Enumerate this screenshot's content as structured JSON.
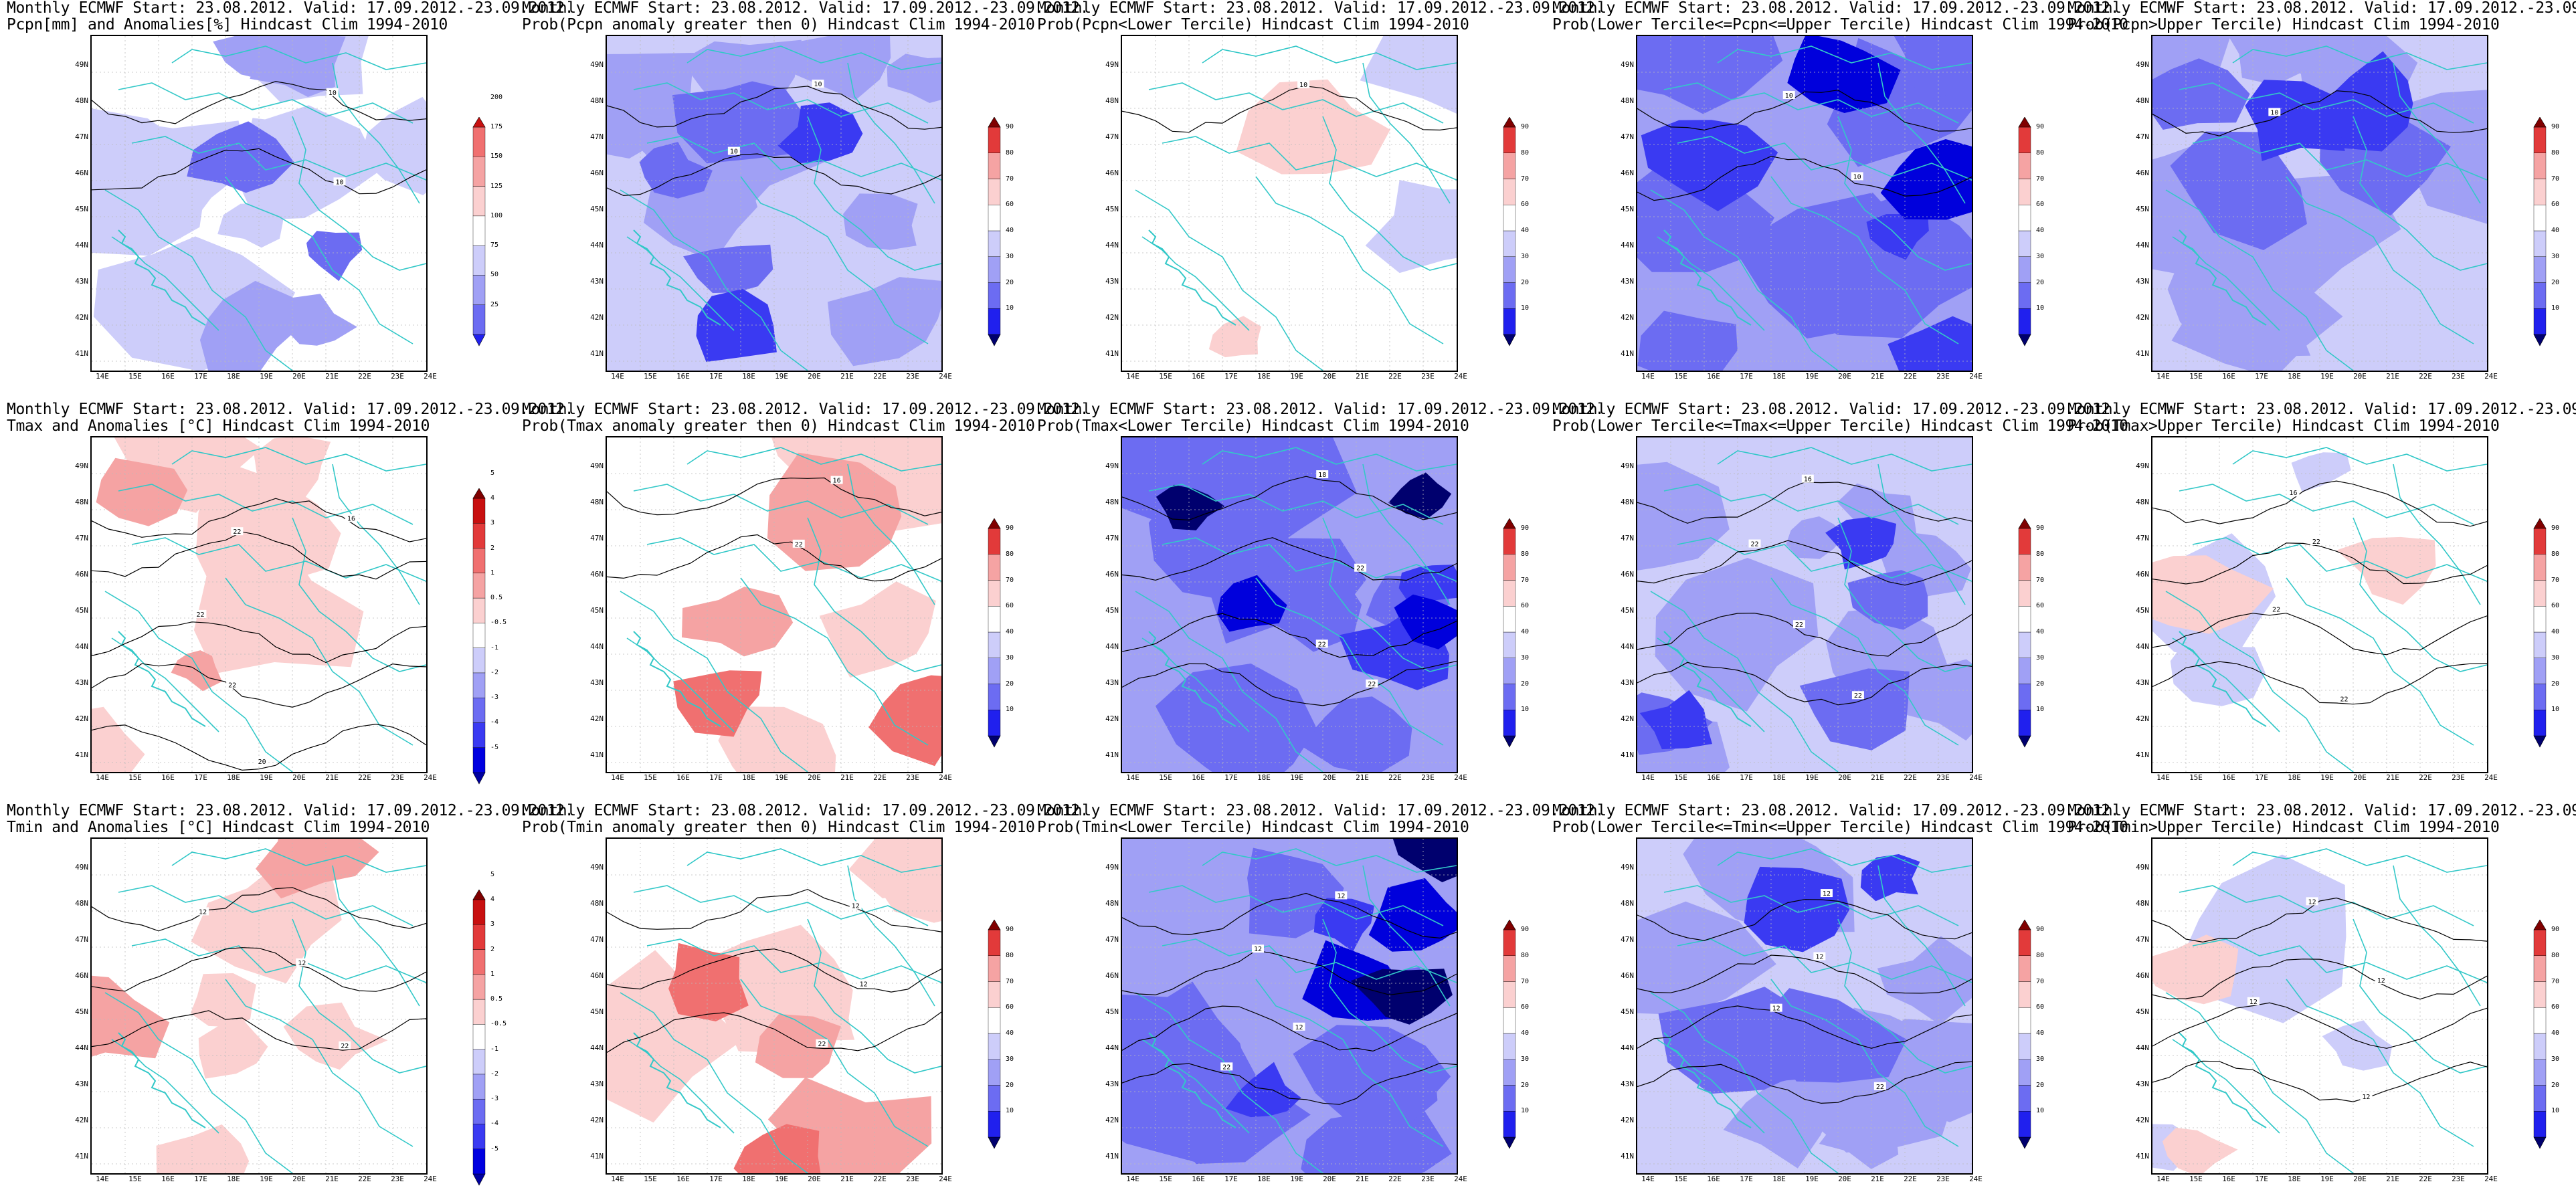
{
  "header_line": "Monthly ECMWF Start: 23.08.2012. Valid: 17.09.2012.-23.09.2012.",
  "axes": {
    "lat_labels": [
      "41N",
      "42N",
      "43N",
      "44N",
      "45N",
      "46N",
      "47N",
      "48N",
      "49N"
    ],
    "lon_labels": [
      "14E",
      "15E",
      "16E",
      "17E",
      "18E",
      "19E",
      "20E",
      "21E",
      "22E",
      "23E",
      "24E"
    ]
  },
  "colorbars": {
    "pcpn": [
      "25",
      "50",
      "75",
      "100",
      "125",
      "150",
      "175",
      "200"
    ],
    "prob": [
      "10",
      "20",
      "30",
      "40",
      "60",
      "70",
      "80",
      "90"
    ],
    "temp": [
      "-5",
      "-4",
      "-3",
      "-2",
      "-1",
      "-0.5",
      "0.5",
      "1",
      "2",
      "3",
      "4",
      "5"
    ]
  },
  "colors": {
    "blue_scale": [
      "#00006e",
      "#0000dc",
      "#3a3af2",
      "#6c6cf2",
      "#a0a0f5",
      "#cdcdfa"
    ],
    "red_scale": [
      "#fbd0d0",
      "#f5a3a3",
      "#f07070",
      "#e23a3a",
      "#c81010",
      "#800000"
    ],
    "border": "#33c8c8",
    "contour": "#000000"
  },
  "panels": [
    {
      "title": "Pcpn[mm] and Anomalies[%] Hindcast Clim 1994-2010",
      "cbar": "pcpn",
      "contours": [
        "10",
        "10"
      ],
      "fill": "blue_light"
    },
    {
      "title": "Prob(Pcpn anomaly greater then 0) Hindcast Clim 1994-2010",
      "cbar": "prob",
      "contours": [
        "10",
        "10"
      ],
      "fill": "blue_medium"
    },
    {
      "title": "Prob(Pcpn<Lower Tercile) Hindcast Clim 1994-2010",
      "cbar": "prob",
      "contours": [
        "10"
      ],
      "fill": "mostly_white"
    },
    {
      "title": "Prob(Lower Tercile<=Pcpn<=Upper Tercile) Hindcast Clim 1994-2010",
      "cbar": "prob",
      "contours": [
        "10",
        "10"
      ],
      "fill": "blue_strong"
    },
    {
      "title": "Prob(Pcpn>Upper Tercile) Hindcast Clim 1994-2010",
      "cbar": "prob",
      "contours": [
        "10"
      ],
      "fill": "blue_medium"
    },
    {
      "title": "Tmax and Anomalies [°C] Hindcast Clim 1994-2010",
      "cbar": "temp",
      "contours": [
        "16",
        "22",
        "22",
        "22",
        "20"
      ],
      "fill": "red_light"
    },
    {
      "title": "Prob(Tmax anomaly greater then 0) Hindcast Clim 1994-2010",
      "cbar": "prob",
      "contours": [
        "16",
        "22"
      ],
      "fill": "red_strong"
    },
    {
      "title": "Prob(Tmax<Lower Tercile) Hindcast Clim 1994-2010",
      "cbar": "prob",
      "contours": [
        "18",
        "22",
        "22",
        "22"
      ],
      "fill": "blue_deep"
    },
    {
      "title": "Prob(Lower Tercile<=Tmax<=Upper Tercile) Hindcast Clim 1994-2010",
      "cbar": "prob",
      "contours": [
        "16",
        "22",
        "22",
        "22"
      ],
      "fill": "blue_medium"
    },
    {
      "title": "Prob(Tmax>Upper Tercile) Hindcast Clim 1994-2010",
      "cbar": "prob",
      "contours": [
        "16",
        "22",
        "22",
        "22"
      ],
      "fill": "mostly_white_red"
    },
    {
      "title": "Tmin and Anomalies [°C] Hindcast Clim 1994-2010",
      "cbar": "temp",
      "contours": [
        "12",
        "12",
        "22"
      ],
      "fill": "red_light"
    },
    {
      "title": "Prob(Tmin anomaly greater then 0) Hindcast Clim 1994-2010",
      "cbar": "prob",
      "contours": [
        "12",
        "12",
        "22"
      ],
      "fill": "red_strong"
    },
    {
      "title": "Prob(Tmin<Lower Tercile) Hindcast Clim 1994-2010",
      "cbar": "prob",
      "contours": [
        "12",
        "12",
        "12",
        "22"
      ],
      "fill": "blue_deep"
    },
    {
      "title": "Prob(Lower Tercile<=Tmin<=Upper Tercile) Hindcast Clim 1994-2010",
      "cbar": "prob",
      "contours": [
        "12",
        "12",
        "12",
        "22"
      ],
      "fill": "blue_medium"
    },
    {
      "title": "Prob(Tmin>Upper Tercile) Hindcast Clim 1994-2010",
      "cbar": "prob",
      "contours": [
        "12",
        "12",
        "12",
        "12"
      ],
      "fill": "mostly_white_red"
    }
  ]
}
